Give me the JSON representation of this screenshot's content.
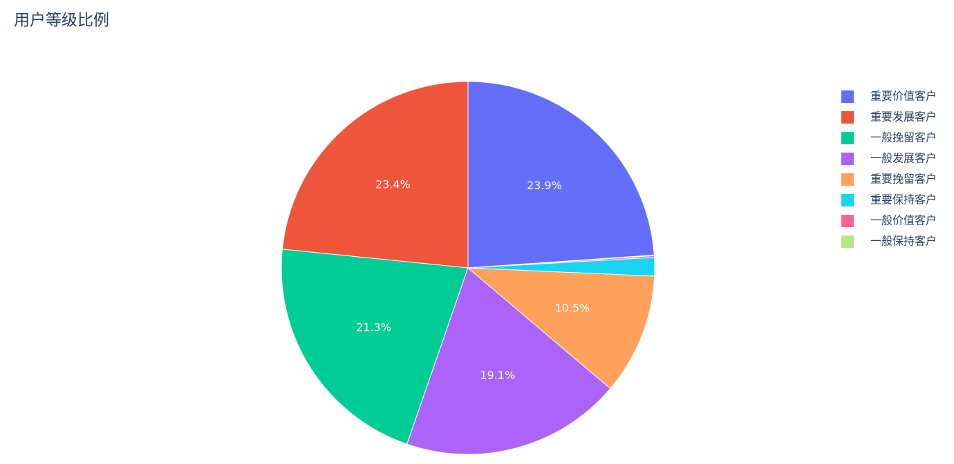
{
  "chart_data": {
    "type": "pie",
    "title": "用户等级比例",
    "categories": [
      "重要价值客户",
      "重要发展客户",
      "一般挽留客户",
      "一般发展客户",
      "重要挽留客户",
      "重要保持客户",
      "一般价值客户",
      "一般保持客户"
    ],
    "values": [
      23.9,
      23.4,
      21.3,
      19.1,
      10.5,
      1.6,
      0.15,
      0.05
    ],
    "value_labels": [
      "23.9%",
      "23.4%",
      "21.3%",
      "19.1%",
      "10.5%",
      null,
      null,
      null
    ],
    "colors": [
      "#636efa",
      "#ef553b",
      "#00cc96",
      "#ab63fa",
      "#ffa15a",
      "#19d3f3",
      "#ff6692",
      "#b6e880"
    ],
    "legend": "top-right"
  }
}
